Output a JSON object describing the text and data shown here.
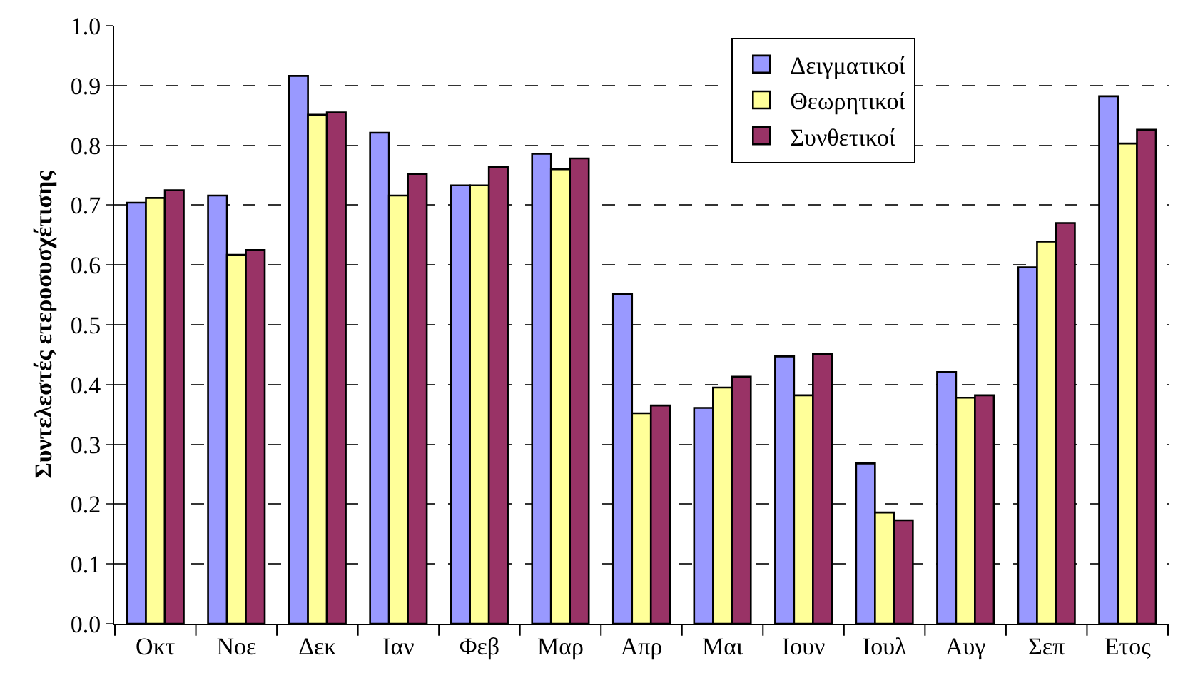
{
  "chart_data": {
    "type": "bar",
    "ylabel": "Συντελεστές ετεροσυσχέτισης",
    "categories": [
      "Οκτ",
      "Νοε",
      "Δεκ",
      "Ιαν",
      "Φεβ",
      "Μαρ",
      "Απρ",
      "Μαι",
      "Ιουν",
      "Ιουλ",
      "Αυγ",
      "Σεπ",
      "Ετος"
    ],
    "series": [
      {
        "name": "Δειγματικοί",
        "color": "#9999ff",
        "values": [
          0.704,
          0.716,
          0.916,
          0.821,
          0.733,
          0.786,
          0.551,
          0.361,
          0.447,
          0.268,
          0.421,
          0.596,
          0.882
        ]
      },
      {
        "name": "Θεωρητικοί",
        "color": "#ffff99",
        "values": [
          0.712,
          0.617,
          0.851,
          0.716,
          0.733,
          0.76,
          0.352,
          0.395,
          0.382,
          0.186,
          0.378,
          0.639,
          0.803
        ]
      },
      {
        "name": "Συνθετικοί",
        "color": "#993366",
        "values": [
          0.725,
          0.625,
          0.855,
          0.752,
          0.764,
          0.778,
          0.365,
          0.413,
          0.451,
          0.173,
          0.382,
          0.67,
          0.826
        ]
      }
    ],
    "ylim": [
      0,
      1
    ],
    "yticks": [
      {
        "value": 0,
        "label": "0.0"
      },
      {
        "value": 0.1,
        "label": "0.1"
      },
      {
        "value": 0.2,
        "label": "0.2"
      },
      {
        "value": 0.3,
        "label": "0.3"
      },
      {
        "value": 0.4,
        "label": "0.4"
      },
      {
        "value": 0.5,
        "label": "0.5"
      },
      {
        "value": 0.6,
        "label": "0.6"
      },
      {
        "value": 0.7,
        "label": "0.7"
      },
      {
        "value": 0.8,
        "label": "0.8"
      },
      {
        "value": 0.9,
        "label": "0.9"
      },
      {
        "value": 1,
        "label": "1.0"
      }
    ],
    "grid": "y",
    "legend": "top right"
  }
}
